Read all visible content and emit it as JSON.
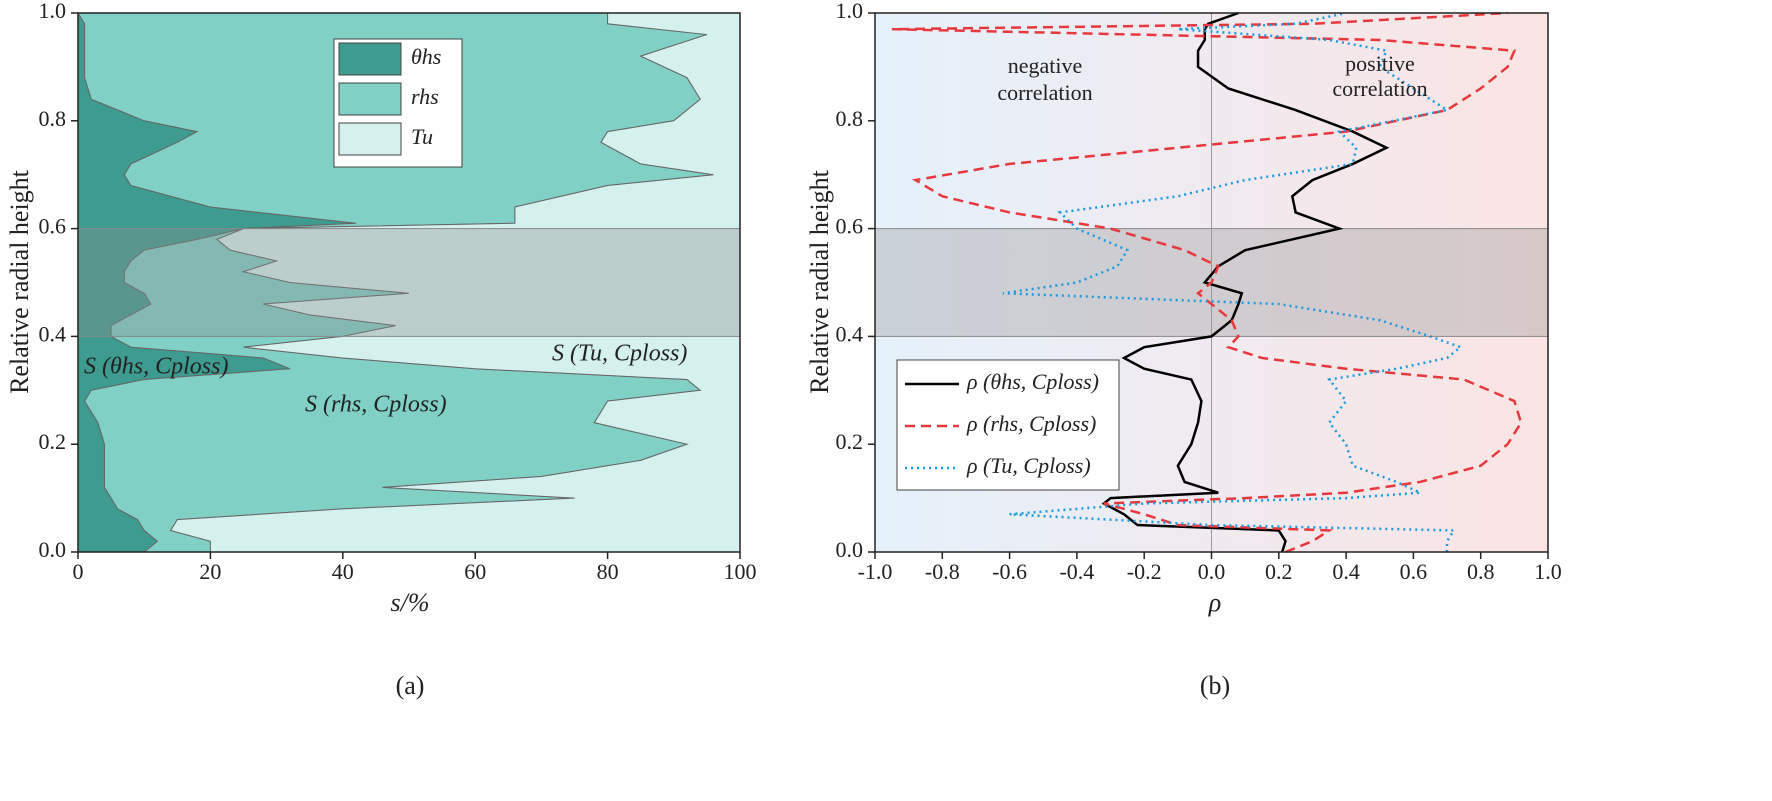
{
  "chart_data": [
    {
      "type": "area",
      "stacked": true,
      "orientation": "horizontal",
      "panel_label": "(a)",
      "x_label": "s/%",
      "y_label": "Relative radial height",
      "xlim": [
        0,
        100
      ],
      "xticks": [
        0,
        20,
        40,
        60,
        80,
        100
      ],
      "ylim": [
        0,
        1
      ],
      "yticks": [
        {
          "value": 0,
          "label": "0.0"
        },
        {
          "value": 0.2,
          "label": "0.2"
        },
        {
          "value": 0.4,
          "label": "0.4"
        },
        {
          "value": 0.6,
          "label": "0.6"
        },
        {
          "value": 0.8,
          "label": "0.8"
        },
        {
          "value": 1,
          "label": "1.0"
        }
      ],
      "band": [
        0.4,
        0.6
      ],
      "band_color": "rgba(140,140,140,0.35)",
      "legend": "upper center",
      "y": [
        0,
        0.02,
        0.04,
        0.06,
        0.08,
        0.1,
        0.12,
        0.14,
        0.17,
        0.2,
        0.24,
        0.28,
        0.3,
        0.32,
        0.34,
        0.36,
        0.38,
        0.4,
        0.42,
        0.44,
        0.46,
        0.48,
        0.5,
        0.52,
        0.54,
        0.56,
        0.58,
        0.6,
        0.61,
        0.64,
        0.68,
        0.7,
        0.72,
        0.76,
        0.78,
        0.8,
        0.84,
        0.88,
        0.92,
        0.96,
        0.98,
        1.0
      ],
      "series": [
        {
          "name": "θhs",
          "color": "#3e9b8f",
          "values": [
            10,
            12,
            10,
            9,
            6,
            5,
            4,
            4,
            4,
            4,
            3,
            1,
            2,
            10,
            32,
            28,
            8,
            5,
            5,
            8,
            11,
            10,
            7,
            7,
            8,
            10,
            18,
            25,
            42,
            20,
            8,
            7,
            8,
            15,
            18,
            10,
            2,
            1,
            1,
            1,
            1,
            0
          ]
        },
        {
          "name": "rhs",
          "color": "#80d0c6",
          "values": [
            10,
            8,
            4,
            6,
            34,
            70,
            42,
            66,
            81,
            88,
            75,
            79,
            92,
            82,
            28,
            12,
            17,
            35,
            43,
            27,
            17,
            40,
            25,
            18,
            22,
            13,
            3,
            0,
            24,
            46,
            72,
            89,
            77,
            64,
            62,
            80,
            92,
            91,
            84,
            94,
            79,
            80
          ]
        },
        {
          "name": "Tu",
          "color": "#d4f1ee",
          "values": [
            80,
            80,
            86,
            85,
            60,
            25,
            54,
            30,
            15,
            8,
            22,
            20,
            6,
            8,
            40,
            60,
            75,
            60,
            52,
            65,
            72,
            50,
            68,
            75,
            70,
            77,
            79,
            75,
            34,
            34,
            20,
            4,
            15,
            21,
            20,
            10,
            6,
            8,
            15,
            5,
            20,
            20
          ]
        }
      ],
      "annotations": [
        "S (θhs, Cploss)",
        "S (rhs, Cploss)",
        "S (Tu, Cploss)"
      ]
    },
    {
      "type": "line",
      "orientation": "horizontal",
      "panel_label": "(b)",
      "x_label": "ρ",
      "y_label": "Relative radial height",
      "xlim": [
        -1,
        1
      ],
      "xticks": [
        {
          "value": -1,
          "label": "-1.0"
        },
        {
          "value": -0.8,
          "label": "-0.8"
        },
        {
          "value": -0.6,
          "label": "-0.6"
        },
        {
          "value": -0.4,
          "label": "-0.4"
        },
        {
          "value": -0.2,
          "label": "-0.2"
        },
        {
          "value": 0,
          "label": "0.0"
        },
        {
          "value": 0.2,
          "label": "0.2"
        },
        {
          "value": 0.4,
          "label": "0.4"
        },
        {
          "value": 0.6,
          "label": "0.6"
        },
        {
          "value": 0.8,
          "label": "0.8"
        },
        {
          "value": 1,
          "label": "1.0"
        }
      ],
      "ylim": [
        0,
        1
      ],
      "yticks": [
        {
          "value": 0,
          "label": "0.0"
        },
        {
          "value": 0.2,
          "label": "0.2"
        },
        {
          "value": 0.4,
          "label": "0.4"
        },
        {
          "value": 0.6,
          "label": "0.6"
        },
        {
          "value": 0.8,
          "label": "0.8"
        },
        {
          "value": 1,
          "label": "1.0"
        }
      ],
      "band": [
        0.4,
        0.6
      ],
      "band_color": "rgba(150,150,150,0.35)",
      "background": [
        "#e5f1fb",
        "#fbe4e4"
      ],
      "zero_line": true,
      "legend": "lower left",
      "y": [
        0,
        0.02,
        0.04,
        0.05,
        0.07,
        0.09,
        0.1,
        0.11,
        0.13,
        0.16,
        0.2,
        0.24,
        0.28,
        0.32,
        0.34,
        0.36,
        0.38,
        0.4,
        0.43,
        0.46,
        0.48,
        0.5,
        0.53,
        0.56,
        0.6,
        0.63,
        0.66,
        0.69,
        0.72,
        0.75,
        0.78,
        0.82,
        0.86,
        0.9,
        0.93,
        0.95,
        0.97,
        0.98,
        1.0
      ],
      "series": [
        {
          "name": "ρ (θhs, Cploss)",
          "color": "#000000",
          "linestyle": "solid",
          "values": [
            0.21,
            0.22,
            0.2,
            -0.22,
            -0.26,
            -0.32,
            -0.3,
            0.02,
            -0.08,
            -0.1,
            -0.06,
            -0.04,
            -0.03,
            -0.06,
            -0.2,
            -0.26,
            -0.2,
            0,
            0.06,
            0.08,
            0.09,
            -0.02,
            0.02,
            0.1,
            0.38,
            0.25,
            0.24,
            0.3,
            0.42,
            0.52,
            0.42,
            0.25,
            0.05,
            -0.04,
            -0.04,
            -0.02,
            -0.02,
            -0.01,
            0.08
          ]
        },
        {
          "name": "ρ (rhs, Cploss)",
          "color": "#e8383d",
          "linestyle": "dashed",
          "values": [
            0.22,
            0.3,
            0.35,
            -0.1,
            -0.2,
            -0.32,
            0.1,
            0.4,
            0.62,
            0.8,
            0.88,
            0.92,
            0.9,
            0.75,
            0.4,
            0.15,
            0.05,
            0.08,
            0.06,
            0,
            -0.04,
            0,
            0.02,
            -0.08,
            -0.3,
            -0.6,
            -0.8,
            -0.88,
            -0.6,
            -0.1,
            0.4,
            0.7,
            0.8,
            0.88,
            0.9,
            0.5,
            -0.95,
            0.3,
            0.88
          ]
        },
        {
          "name": "ρ (Tu, Cploss)",
          "color": "#1a9be0",
          "linestyle": "dotted",
          "values": [
            0.7,
            0.7,
            0.72,
            0,
            -0.6,
            -0.2,
            0.4,
            0.62,
            0.55,
            0.42,
            0.4,
            0.35,
            0.4,
            0.35,
            0.55,
            0.7,
            0.74,
            0.65,
            0.5,
            0.2,
            -0.62,
            -0.4,
            -0.28,
            -0.25,
            -0.4,
            -0.45,
            -0.1,
            0.1,
            0.42,
            0.43,
            0.38,
            0.7,
            0.6,
            0.5,
            0.52,
            0.35,
            -0.1,
            0.25,
            0.4
          ]
        }
      ],
      "annotations": [
        {
          "lines": [
            "negative",
            "correlation"
          ],
          "color": "#1a9be0"
        },
        {
          "lines": [
            "positive",
            "correlation"
          ],
          "color": "#e8383d"
        }
      ]
    }
  ]
}
